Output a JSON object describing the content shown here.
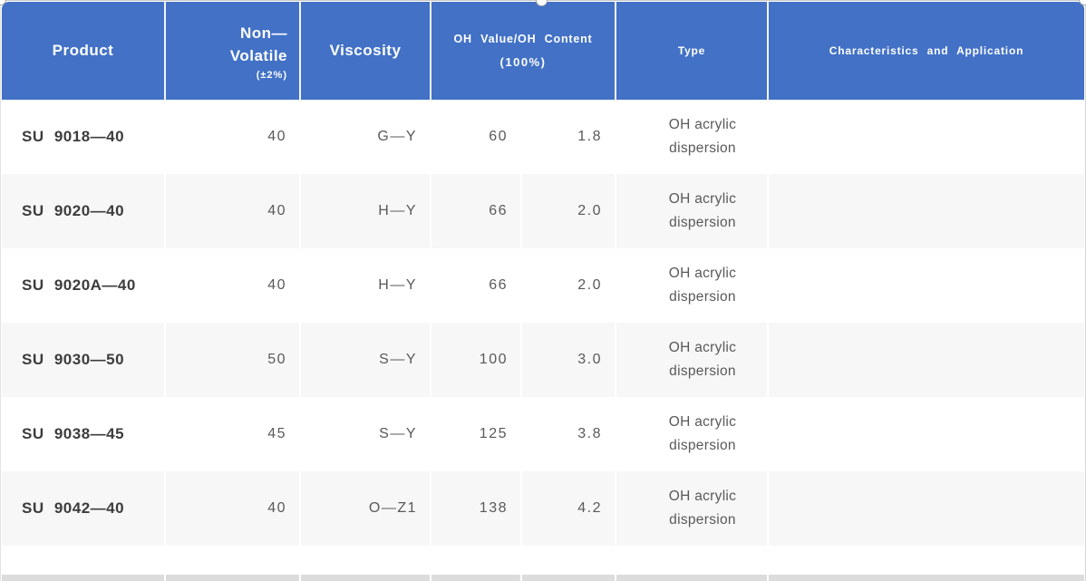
{
  "header": {
    "product": "Product",
    "non_volatile": {
      "line1": "Non—",
      "line2": "Volatile",
      "note": "(±2%)"
    },
    "viscosity": "Viscosity",
    "oh": {
      "line1": "OH Value/OH Content",
      "line2": "(100%)"
    },
    "type": "Type",
    "characteristics": "Characteristics and Application"
  },
  "rows": [
    {
      "product": "SU 9018—40",
      "non_volatile": "40",
      "viscosity": "G—Y",
      "oh_value": "60",
      "oh_content": "1.8",
      "type": "OH acrylic dispersion",
      "characteristics": ""
    },
    {
      "product": "SU 9020—40",
      "non_volatile": "40",
      "viscosity": "H—Y",
      "oh_value": "66",
      "oh_content": "2.0",
      "type": "OH acrylic dispersion",
      "characteristics": ""
    },
    {
      "product": "SU 9020A—40",
      "non_volatile": "40",
      "viscosity": "H—Y",
      "oh_value": "66",
      "oh_content": "2.0",
      "type": "OH acrylic dispersion",
      "characteristics": ""
    },
    {
      "product": "SU 9030—50",
      "non_volatile": "50",
      "viscosity": "S—Y",
      "oh_value": "100",
      "oh_content": "3.0",
      "type": "OH acrylic dispersion",
      "characteristics": ""
    },
    {
      "product": "SU 9038—45",
      "non_volatile": "45",
      "viscosity": "S—Y",
      "oh_value": "125",
      "oh_content": "3.8",
      "type": "OH acrylic dispersion",
      "characteristics": ""
    },
    {
      "product": "SU 9042—40",
      "non_volatile": "40",
      "viscosity": "O—Z1",
      "oh_value": "138",
      "oh_content": "4.2",
      "type": "OH acrylic dispersion",
      "characteristics": ""
    }
  ],
  "colors": {
    "header_bg": "#4271c6",
    "header_text": "#ffffff",
    "row_alt_bg": "#f7f7f7",
    "product_text": "#3c3c3c",
    "value_text": "#595959",
    "next_table_edge": "#dcdcdc",
    "selection_border": "#c9c9c9"
  }
}
